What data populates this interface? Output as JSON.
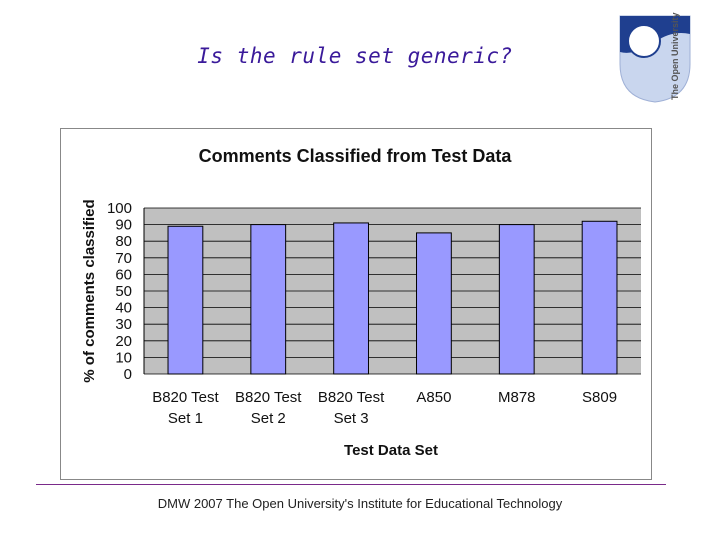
{
  "slide": {
    "title": "Is the rule set generic?",
    "footer": "DMW 2007 The Open University's Institute for Educational Technology",
    "logo_text": "The Open University"
  },
  "colors": {
    "title": "#3a1a9a",
    "bar_fill": "#9999ff",
    "bar_stroke": "#000000",
    "plot_background": "#c0c0c0",
    "rule": "#7a2a8a"
  },
  "chart_data": {
    "type": "bar",
    "title": "Comments Classified from Test Data",
    "xlabel": "Test Data Set",
    "ylabel": "% of comments classified",
    "categories": [
      [
        "B820 Test",
        "Set 1"
      ],
      [
        "B820 Test",
        "Set 2"
      ],
      [
        "B820 Test",
        "Set 3"
      ],
      [
        "A850"
      ],
      [
        "M878"
      ],
      [
        "S809"
      ]
    ],
    "values": [
      89,
      90,
      91,
      85,
      90,
      92
    ],
    "ylim": [
      0,
      100
    ],
    "yticks": [
      0,
      10,
      20,
      30,
      40,
      50,
      60,
      70,
      80,
      90,
      100
    ],
    "grid": true,
    "legend": "none"
  }
}
